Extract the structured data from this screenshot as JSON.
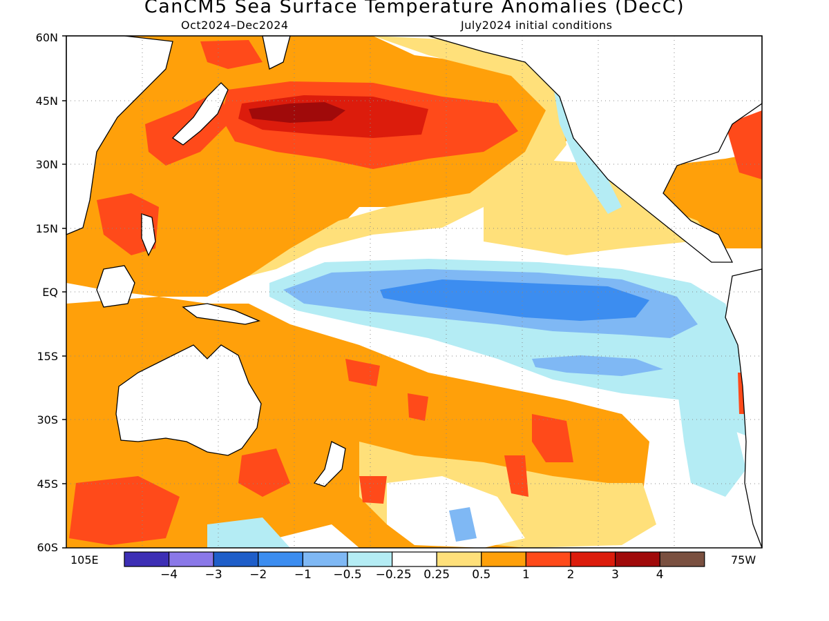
{
  "title": "CanCM5 Sea Surface Temperature Anomalies (DecC)",
  "period": "Oct2024–Dec2024",
  "init": "July2024 initial conditions",
  "lat_labels": [
    "60N",
    "45N",
    "30N",
    "15N",
    "EQ",
    "15S",
    "30S",
    "45S",
    "60S"
  ],
  "lon_labels": {
    "left": "105E",
    "right": "75W"
  },
  "colorbar": {
    "labels": [
      "−4",
      "−3",
      "−2",
      "−1",
      "−0.5",
      "−0.25",
      "0.25",
      "0.5",
      "1",
      "2",
      "3",
      "4"
    ],
    "colors": [
      "#3d2fb5",
      "#8a78e8",
      "#1f5ec9",
      "#3c8df0",
      "#7fb8f4",
      "#b4ecf4",
      "#ffffff",
      "#ffe07a",
      "#ffa00a",
      "#ff4a1a",
      "#dc1c0c",
      "#a00a0a",
      "#7a5040"
    ]
  },
  "map_extent": {
    "lon": [
      "105E",
      "75W"
    ],
    "lat": [
      "60S",
      "60N"
    ]
  }
}
